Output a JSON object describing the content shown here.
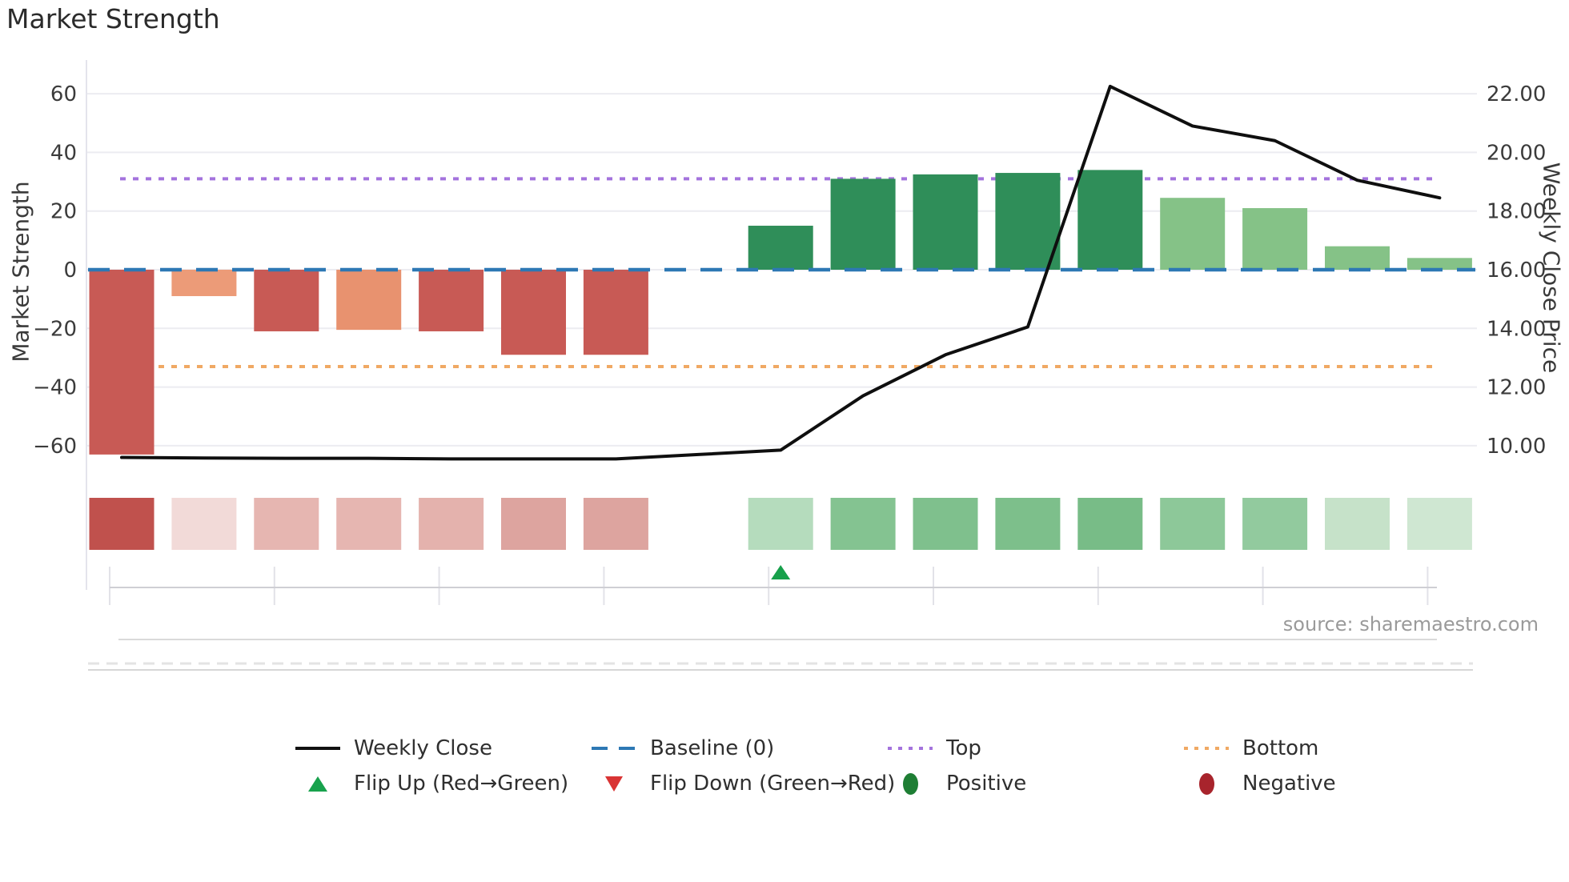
{
  "title": "Market Strength",
  "source": "source: sharemaestro.com",
  "left_axis": {
    "label": "Market Strength",
    "ticks": [
      "60",
      "40",
      "20",
      "0",
      "−20",
      "−40",
      "−60"
    ],
    "tick_values": [
      60,
      40,
      20,
      0,
      -20,
      -40,
      -60
    ]
  },
  "right_axis": {
    "label": "Weekly Close Price",
    "ticks": [
      "22.00",
      "20.00",
      "18.00",
      "16.00",
      "14.00",
      "12.00",
      "10.00"
    ],
    "tick_values": [
      22,
      20,
      18,
      16,
      14,
      12,
      10
    ]
  },
  "legend": [
    {
      "label": "Weekly Close",
      "swatch": "solid-line",
      "color": "#111111"
    },
    {
      "label": "Baseline (0)",
      "swatch": "dashed-line",
      "color": "#2d78b4"
    },
    {
      "label": "Top",
      "swatch": "dotted-line",
      "color": "#a473dd"
    },
    {
      "label": "Bottom",
      "swatch": "dotted-line",
      "color": "#f0a964"
    },
    {
      "label": "Flip Up (Red→Green)",
      "swatch": "triangle-up",
      "color": "#18a24d"
    },
    {
      "label": "Flip Down (Green→Red)",
      "swatch": "triangle-down",
      "color": "#d93434"
    },
    {
      "label": "Positive",
      "swatch": "ellipse",
      "color": "#1e7e34"
    },
    {
      "label": "Negative",
      "swatch": "ellipse",
      "color": "#a8242c"
    }
  ],
  "chart_data": {
    "type": "bar",
    "subtype": "combo-bar-line-heatmap",
    "title": "Market Strength",
    "xlabel": "",
    "ylabel_left": "Market Strength",
    "ylabel_right": "Weekly Close Price",
    "x": [
      1,
      2,
      3,
      4,
      5,
      6,
      7,
      8,
      9,
      10,
      11,
      12,
      13,
      14,
      15,
      16,
      17
    ],
    "grid": true,
    "legend_position": "bottom",
    "ylim_left": [
      -72,
      72
    ],
    "ylim_right": [
      8.8,
      23.2
    ],
    "series": [
      {
        "name": "Market Strength",
        "type": "bar",
        "axis": "left",
        "values": [
          -63,
          -9,
          -21,
          -20.5,
          -21,
          -29,
          -29,
          0,
          15,
          31,
          32.5,
          33,
          34,
          24.5,
          21,
          8,
          4
        ],
        "colors": [
          "#c85a55",
          "#ec9b78",
          "#c85a55",
          "#e8926f",
          "#c85a55",
          "#c85a55",
          "#c85a55",
          null,
          "#2f8e59",
          "#2f8e59",
          "#2f8e59",
          "#2f8e59",
          "#2f8e59",
          "#85c287",
          "#85c287",
          "#85c287",
          "#85c287"
        ]
      },
      {
        "name": "Weekly Close",
        "type": "line",
        "axis": "right",
        "color": "#0f0f0f",
        "values": [
          9.6,
          9.58,
          9.57,
          9.57,
          9.55,
          9.55,
          9.55,
          9.7,
          9.85,
          11.7,
          13.1,
          14.05,
          22.25,
          20.9,
          20.4,
          19.05,
          18.45
        ]
      },
      {
        "name": "Strength Heatmap",
        "type": "heatmap",
        "colors": [
          "#c0514d",
          "#f2dad8",
          "#e6b6b1",
          "#e6b6b1",
          "#e4b2ad",
          "#dda49f",
          "#dda49f",
          null,
          "#b5dcbd",
          "#84c391",
          "#7fc08d",
          "#7dbf8b",
          "#78bc87",
          "#8dc899",
          "#92ca9e",
          "#c6e2c9",
          "#cfe7d2"
        ]
      }
    ],
    "reference_lines": [
      {
        "name": "Baseline (0)",
        "value": 0,
        "style": "dashed",
        "color": "#2d78b4"
      },
      {
        "name": "Top",
        "value": 31,
        "style": "dotted",
        "color": "#a473dd"
      },
      {
        "name": "Bottom",
        "value": -33,
        "style": "dotted",
        "color": "#f0a964"
      }
    ],
    "markers": [
      {
        "name": "Flip Up (Red→Green)",
        "shape": "triangle-up",
        "slot": 9,
        "color": "#17a04b"
      }
    ]
  }
}
